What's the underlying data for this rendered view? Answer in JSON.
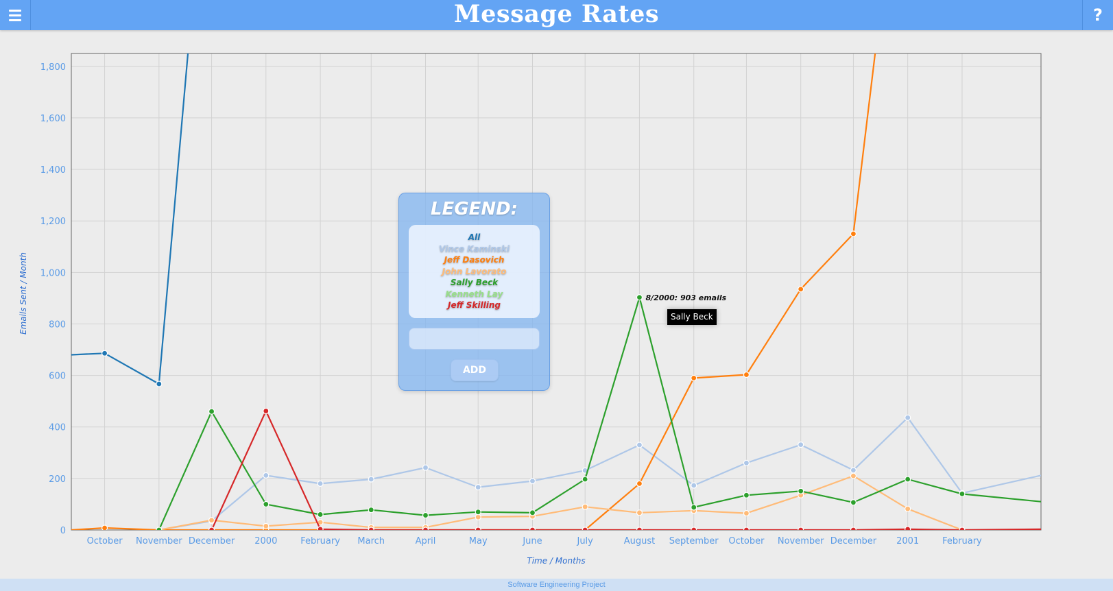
{
  "header": {
    "title": "Message Rates",
    "menu_icon": "hamburger-menu-icon",
    "help_label": "?"
  },
  "legend": {
    "title": "LEGEND:",
    "items": [
      {
        "label": "All",
        "color": "#1f77b4"
      },
      {
        "label": "Vince Kaminski",
        "color": "#aec7e8"
      },
      {
        "label": "Jeff Dasovich",
        "color": "#ff7f0e"
      },
      {
        "label": "John Lavorato",
        "color": "#ffbb78"
      },
      {
        "label": "Sally Beck",
        "color": "#2ca02c"
      },
      {
        "label": "Kenneth Lay",
        "color": "#98df8a"
      },
      {
        "label": "Jeff Skilling",
        "color": "#d62728"
      }
    ],
    "input_value": "",
    "add_label": "ADD"
  },
  "tooltip": {
    "point_label": "8/2000: 903 emails",
    "series_label": "Sally Beck"
  },
  "footer": {
    "text": "Software Engineering Project"
  },
  "chart_data": {
    "type": "line",
    "xlabel": "Time / Months",
    "ylabel": "Emails Sent / Month",
    "ylim": [
      0,
      1850
    ],
    "xlim": [
      "1999-09-12",
      "2001-03-18"
    ],
    "grid": true,
    "x": [
      "1999-10",
      "1999-11",
      "1999-12",
      "2000-01",
      "2000-02",
      "2000-03",
      "2000-04",
      "2000-05",
      "2000-06",
      "2000-07",
      "2000-08",
      "2000-09",
      "2000-10",
      "2000-11",
      "2000-12",
      "2001-01",
      "2001-02"
    ],
    "x_tick_labels": [
      "October",
      "November",
      "December",
      "2000",
      "February",
      "March",
      "April",
      "May",
      "June",
      "July",
      "August",
      "September",
      "October",
      "November",
      "December",
      "2001",
      "February"
    ],
    "y_ticks": [
      0,
      200,
      400,
      600,
      800,
      1000,
      1200,
      1400,
      1600,
      1800
    ],
    "y_tick_labels": [
      "0",
      "200",
      "400",
      "600",
      "800",
      "1,000",
      "1,200",
      "1,400",
      "1,600",
      "1,800"
    ],
    "series": [
      {
        "name": "All",
        "color": "#1f77b4",
        "x": [
          "1999-09-12",
          "1999-10",
          "1999-11",
          "1999-12"
        ],
        "values": [
          680,
          686,
          567,
          2900
        ]
      },
      {
        "name": "Vince Kaminski",
        "color": "#aec7e8",
        "x": [
          "1999-11",
          "1999-12",
          "2000-01",
          "2000-02",
          "2000-03",
          "2000-04",
          "2000-05",
          "2000-06",
          "2000-07",
          "2000-08",
          "2000-09",
          "2000-10",
          "2000-11",
          "2000-12",
          "2001-01",
          "2001-02",
          "2001-03-18"
        ],
        "values": [
          0,
          35,
          212,
          180,
          197,
          242,
          166,
          190,
          231,
          330,
          173,
          260,
          331,
          232,
          436,
          143,
          212
        ]
      },
      {
        "name": "Jeff Dasovich",
        "color": "#ff7f0e",
        "x": [
          "1999-09-12",
          "1999-10",
          "1999-11",
          "1999-12",
          "2000-01",
          "2000-02",
          "2000-03",
          "2000-04",
          "2000-05",
          "2000-06",
          "2000-07",
          "2000-08",
          "2000-09",
          "2000-10",
          "2000-11",
          "2000-12",
          "2001-01"
        ],
        "values": [
          0,
          8,
          0,
          0,
          0,
          0,
          0,
          0,
          0,
          0,
          0,
          180,
          590,
          603,
          935,
          1150,
          2900
        ]
      },
      {
        "name": "John Lavorato",
        "color": "#ffbb78",
        "x": [
          "1999-11",
          "1999-12",
          "2000-01",
          "2000-02",
          "2000-03",
          "2000-04",
          "2000-05",
          "2000-06",
          "2000-07",
          "2000-08",
          "2000-09",
          "2000-10",
          "2000-11",
          "2000-12",
          "2001-01",
          "2001-02"
        ],
        "values": [
          0,
          38,
          15,
          30,
          10,
          10,
          50,
          53,
          90,
          67,
          75,
          65,
          135,
          210,
          82,
          0
        ]
      },
      {
        "name": "Sally Beck",
        "color": "#2ca02c",
        "x": [
          "1999-11",
          "1999-12",
          "2000-01",
          "2000-02",
          "2000-03",
          "2000-04",
          "2000-05",
          "2000-06",
          "2000-07",
          "2000-08",
          "2000-09",
          "2000-10",
          "2000-11",
          "2000-12",
          "2001-01",
          "2001-02",
          "2001-03-18"
        ],
        "values": [
          0,
          460,
          100,
          60,
          78,
          57,
          70,
          67,
          197,
          903,
          88,
          135,
          151,
          107,
          197,
          140,
          110
        ]
      },
      {
        "name": "Kenneth Lay",
        "color": "#98df8a",
        "x": [
          "2000-06",
          "2000-07",
          "2000-08"
        ],
        "values": [
          0,
          0,
          0
        ]
      },
      {
        "name": "Jeff Skilling",
        "color": "#d62728",
        "x": [
          "1999-12",
          "2000-01",
          "2000-02",
          "2000-03",
          "2000-04",
          "2000-05",
          "2000-06",
          "2000-07",
          "2000-08",
          "2000-09",
          "2000-10",
          "2000-11",
          "2000-12",
          "2001-01",
          "2001-02",
          "2001-03-18"
        ],
        "values": [
          0,
          462,
          3,
          0,
          0,
          0,
          0,
          0,
          0,
          0,
          0,
          0,
          0,
          3,
          0,
          3
        ]
      }
    ]
  }
}
